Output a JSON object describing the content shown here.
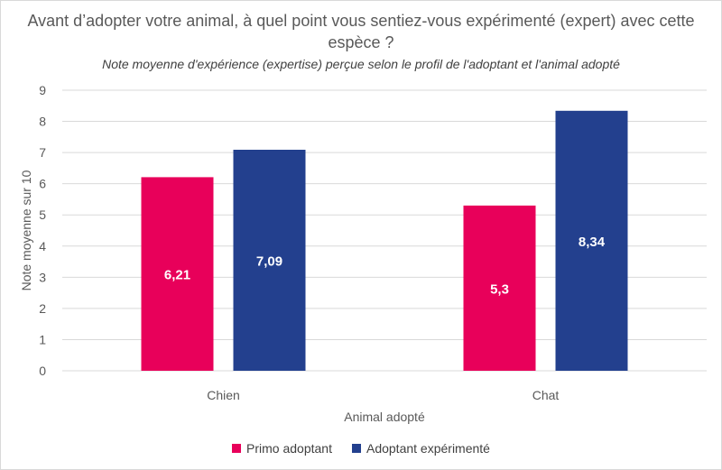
{
  "chart_data": {
    "type": "bar",
    "title": "Avant d’adopter votre animal, à quel point vous sentiez-vous expérimenté (expert) avec cette espèce ?",
    "subtitle": "Note moyenne d'expérience (expertise) perçue selon le profil de l'adoptant et l'animal adopté",
    "xlabel": "Animal adopté",
    "ylabel": "Note moyenne sur 10",
    "categories": [
      "Chien",
      "Chat"
    ],
    "series": [
      {
        "name": "Primo adoptant",
        "color": "#e8005a",
        "values": [
          6.21,
          5.3
        ],
        "labels": [
          "6,21",
          "5,3"
        ]
      },
      {
        "name": "Adoptant expérimenté",
        "color": "#23408e",
        "values": [
          7.09,
          8.34
        ],
        "labels": [
          "7,09",
          "8,34"
        ]
      }
    ],
    "ylim": [
      0,
      9
    ],
    "yticks": [
      0,
      1,
      2,
      3,
      4,
      5,
      6,
      7,
      8,
      9
    ],
    "grid": true,
    "legend_position": "bottom"
  }
}
